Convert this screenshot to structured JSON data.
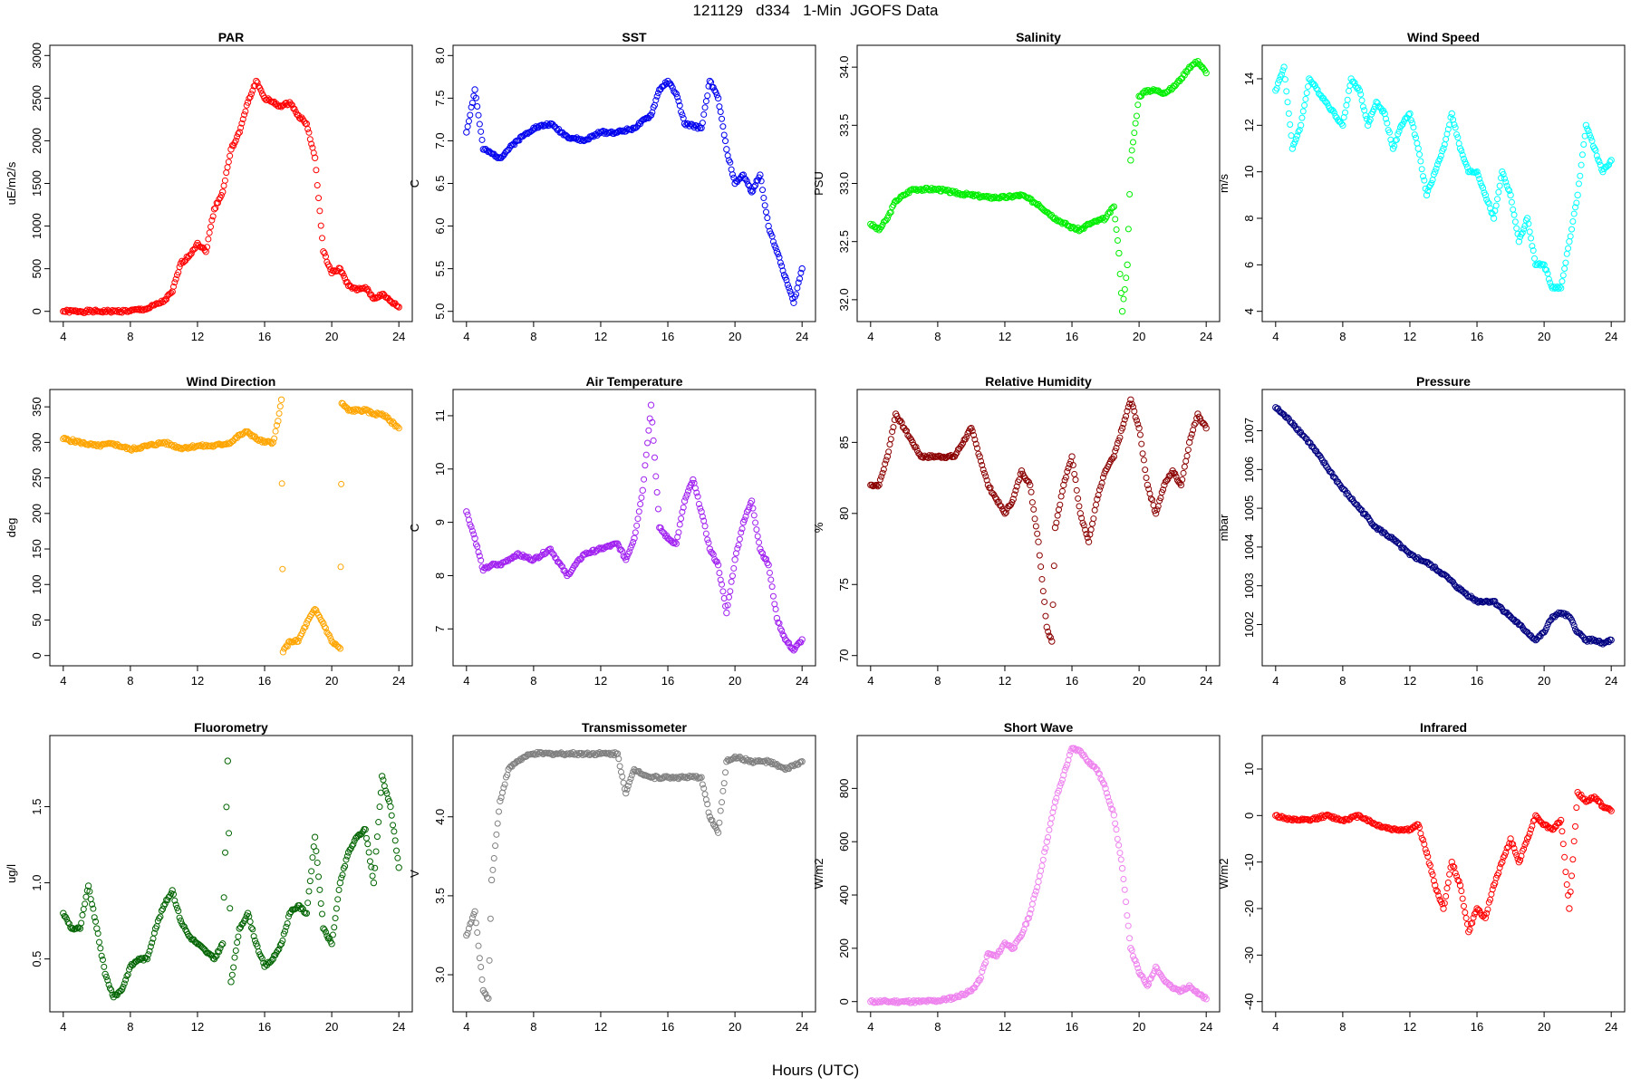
{
  "figure": {
    "suptitle": "121129   d334   1-Min  JGOFS Data",
    "xlabel": "Hours (UTC)"
  },
  "chart_data": [
    {
      "type": "scatter",
      "title": "PAR",
      "ylabel": "uE/m2/s",
      "color": "#ff0000",
      "xlim": [
        4,
        24
      ],
      "ylim": [
        0,
        3000
      ],
      "xticks": [
        4,
        8,
        12,
        16,
        20,
        24
      ],
      "yticks": [
        0,
        500,
        1000,
        1500,
        2000,
        2500,
        3000
      ],
      "x": [
        4,
        5,
        6,
        7,
        8,
        9,
        10,
        10.5,
        11,
        11.5,
        12,
        12.5,
        13,
        13.5,
        14,
        14.5,
        15,
        15.5,
        16,
        16.5,
        17,
        17.5,
        18,
        18.5,
        19,
        19.5,
        20,
        20.5,
        21,
        21.5,
        22,
        22.5,
        23,
        23.5,
        24
      ],
      "y": [
        0,
        0,
        0,
        0,
        5,
        30,
        120,
        230,
        560,
        650,
        800,
        700,
        1200,
        1400,
        1900,
        2100,
        2450,
        2700,
        2500,
        2450,
        2400,
        2450,
        2300,
        2200,
        1800,
        700,
        450,
        500,
        300,
        250,
        280,
        150,
        200,
        120,
        50
      ]
    },
    {
      "type": "scatter",
      "title": "SST",
      "ylabel": "C",
      "color": "#0000ee",
      "xlim": [
        4,
        24
      ],
      "ylim": [
        5,
        8
      ],
      "xticks": [
        4,
        8,
        12,
        16,
        20,
        24
      ],
      "yticks": [
        5.0,
        5.5,
        6.0,
        6.5,
        7.0,
        7.5,
        8.0
      ],
      "x": [
        4,
        4.5,
        5,
        5.5,
        6,
        7,
        8,
        9,
        10,
        11,
        12,
        13,
        14,
        15,
        15.5,
        16,
        16.5,
        17,
        18,
        18.5,
        19,
        19.5,
        20,
        20.5,
        21,
        21.5,
        22,
        22.5,
        23,
        23.5,
        24
      ],
      "y": [
        7.1,
        7.6,
        6.9,
        6.85,
        6.8,
        7.0,
        7.15,
        7.2,
        7.05,
        7.0,
        7.1,
        7.1,
        7.15,
        7.3,
        7.6,
        7.7,
        7.55,
        7.2,
        7.15,
        7.7,
        7.5,
        6.9,
        6.5,
        6.6,
        6.4,
        6.6,
        6.0,
        5.7,
        5.4,
        5.1,
        5.5
      ]
    },
    {
      "type": "scatter",
      "title": "Salinity",
      "ylabel": "PSU",
      "color": "#00ee00",
      "xlim": [
        4,
        24
      ],
      "ylim": [
        31.9,
        34.1
      ],
      "xticks": [
        4,
        8,
        12,
        16,
        20,
        24
      ],
      "yticks": [
        32.0,
        32.5,
        33.0,
        33.5,
        34.0
      ],
      "x": [
        4,
        4.5,
        5,
        5.5,
        6,
        6.5,
        7,
        8,
        9,
        10,
        11,
        12,
        13,
        14,
        15,
        16,
        16.5,
        17,
        18,
        18.5,
        18.8,
        19,
        19.3,
        19.5,
        20,
        20.5,
        21,
        21.5,
        22,
        22.5,
        23,
        23.5,
        24
      ],
      "y": [
        32.65,
        32.6,
        32.7,
        32.85,
        32.9,
        32.95,
        32.95,
        32.95,
        32.92,
        32.9,
        32.88,
        32.88,
        32.9,
        32.82,
        32.7,
        32.62,
        32.6,
        32.65,
        32.7,
        32.8,
        32.4,
        31.9,
        32.3,
        33.2,
        33.75,
        33.8,
        33.8,
        33.78,
        33.82,
        33.9,
        34.0,
        34.05,
        33.95
      ]
    },
    {
      "type": "scatter",
      "title": "Wind Speed",
      "ylabel": "m/s",
      "color": "#00ffff",
      "xlim": [
        4,
        24
      ],
      "ylim": [
        4,
        15
      ],
      "xticks": [
        4,
        8,
        12,
        16,
        20,
        24
      ],
      "yticks": [
        4,
        6,
        8,
        10,
        12,
        14
      ],
      "x": [
        4,
        4.5,
        5,
        5.5,
        6,
        7,
        8,
        8.5,
        9,
        9.5,
        10,
        10.5,
        11,
        11.5,
        12,
        12.5,
        13,
        13.5,
        14,
        14.5,
        15,
        15.5,
        16,
        16.5,
        17,
        17.5,
        18,
        18.5,
        19,
        19.5,
        20,
        20.5,
        21,
        21.5,
        22,
        22.5,
        23,
        23.5,
        24
      ],
      "y": [
        13.5,
        14.5,
        11,
        12,
        14,
        13,
        12,
        14,
        13.5,
        12,
        13,
        12.5,
        11,
        12,
        12.5,
        11,
        9,
        10,
        11,
        12.5,
        11,
        10,
        10,
        9,
        8,
        10,
        9,
        7,
        8,
        6,
        6,
        5,
        5,
        7,
        9,
        12,
        11,
        10,
        10.5
      ]
    },
    {
      "type": "scatter",
      "title": "Wind Direction",
      "ylabel": "deg",
      "color": "#ffa500",
      "xlim": [
        4,
        24
      ],
      "ylim": [
        0,
        360
      ],
      "xticks": [
        4,
        8,
        12,
        16,
        20,
        24
      ],
      "yticks": [
        0,
        50,
        100,
        150,
        200,
        250,
        300,
        350
      ],
      "x": [
        4,
        5,
        6,
        7,
        8,
        9,
        10,
        11,
        12,
        13,
        14,
        14.5,
        15,
        15.5,
        16,
        16.5,
        16.8,
        17,
        17.1,
        17.5,
        18,
        18.5,
        19,
        19.5,
        20,
        20.5,
        20.6,
        21,
        21.5,
        22,
        22.5,
        23,
        23.5,
        24
      ],
      "y": [
        305,
        300,
        295,
        298,
        290,
        295,
        300,
        292,
        295,
        295,
        300,
        310,
        315,
        305,
        300,
        300,
        330,
        360,
        5,
        20,
        20,
        45,
        65,
        45,
        20,
        10,
        355,
        345,
        345,
        345,
        340,
        340,
        330,
        320
      ]
    },
    {
      "type": "scatter",
      "title": "Air Temperature",
      "ylabel": "C",
      "color": "#a020f0",
      "xlim": [
        4,
        24
      ],
      "ylim": [
        6.5,
        11.3
      ],
      "xticks": [
        4,
        8,
        12,
        16,
        20,
        24
      ],
      "yticks": [
        7,
        8,
        9,
        10,
        11
      ],
      "x": [
        4,
        4.5,
        5,
        5.5,
        6,
        7,
        8,
        9,
        10,
        11,
        12,
        13,
        13.5,
        14,
        14.5,
        15,
        15.5,
        16,
        16.5,
        17,
        17.5,
        18,
        18.5,
        19,
        19.5,
        20,
        20.5,
        21,
        21.5,
        22,
        22.5,
        23,
        23.5,
        24
      ],
      "y": [
        9.2,
        8.7,
        8.1,
        8.2,
        8.2,
        8.4,
        8.3,
        8.5,
        8.0,
        8.4,
        8.5,
        8.6,
        8.3,
        8.7,
        9.6,
        11.2,
        8.9,
        8.7,
        8.6,
        9.4,
        9.8,
        9.2,
        8.5,
        8.2,
        7.3,
        8.3,
        9.0,
        9.4,
        8.5,
        8.2,
        7.2,
        6.8,
        6.6,
        6.8
      ]
    },
    {
      "type": "scatter",
      "title": "Relative Humidity",
      "ylabel": "%",
      "color": "#8b0000",
      "xlim": [
        4,
        24
      ],
      "ylim": [
        70,
        88
      ],
      "xticks": [
        4,
        8,
        12,
        16,
        20,
        24
      ],
      "yticks": [
        70,
        75,
        80,
        85
      ],
      "x": [
        4,
        4.5,
        5,
        5.5,
        6,
        6.5,
        7,
        8,
        9,
        10,
        10.5,
        11,
        11.5,
        12,
        12.5,
        13,
        13.5,
        14,
        14.5,
        14.8,
        15,
        15.5,
        16,
        16.5,
        17,
        17.5,
        18,
        18.5,
        19,
        19.5,
        20,
        20.5,
        21,
        21.5,
        22,
        22.5,
        23,
        23.5,
        24
      ],
      "y": [
        82,
        82,
        84,
        87,
        86,
        85,
        84,
        84,
        84,
        86,
        84,
        82,
        81,
        80,
        81,
        83,
        82,
        78,
        72,
        71,
        79,
        82,
        84,
        80,
        78,
        81,
        83,
        84,
        86,
        88,
        86,
        82,
        80,
        82,
        83,
        82,
        85,
        87,
        86
      ]
    },
    {
      "type": "scatter",
      "title": "Pressure",
      "ylabel": "mbar",
      "color": "#000080",
      "xlim": [
        4,
        24
      ],
      "ylim": [
        1001.2,
        1007.8
      ],
      "xticks": [
        4,
        8,
        12,
        16,
        20,
        24
      ],
      "yticks": [
        1002,
        1003,
        1004,
        1005,
        1006,
        1007
      ],
      "x": [
        4,
        5,
        6,
        7,
        8,
        9,
        10,
        11,
        12,
        13,
        14,
        15,
        16,
        17,
        18,
        18.5,
        19,
        19.5,
        20,
        20.5,
        21,
        21.5,
        22,
        22.5,
        23,
        23.5,
        24
      ],
      "y": [
        1007.6,
        1007.2,
        1006.7,
        1006.1,
        1005.5,
        1005.0,
        1004.5,
        1004.2,
        1003.8,
        1003.6,
        1003.3,
        1002.9,
        1002.6,
        1002.6,
        1002.2,
        1002.0,
        1001.8,
        1001.6,
        1001.8,
        1002.2,
        1002.3,
        1002.2,
        1001.8,
        1001.6,
        1001.6,
        1001.5,
        1001.6
      ]
    },
    {
      "type": "scatter",
      "title": "Fluorometry",
      "ylabel": "ug/l",
      "color": "#006400",
      "xlim": [
        4,
        24
      ],
      "ylim": [
        0.22,
        1.9
      ],
      "xticks": [
        4,
        8,
        12,
        16,
        20,
        24
      ],
      "yticks": [
        0.5,
        1.0,
        1.5
      ],
      "x": [
        4,
        4.5,
        5,
        5.5,
        6,
        6.5,
        7,
        7.5,
        8,
        8.5,
        9,
        9.5,
        10,
        10.5,
        11,
        11.5,
        12,
        12.5,
        13,
        13.5,
        13.8,
        14,
        14.5,
        15,
        15.5,
        16,
        16.5,
        17,
        17.5,
        18,
        18.5,
        19,
        19.5,
        20,
        20.5,
        21,
        21.5,
        22,
        22.5,
        23,
        23.5,
        24
      ],
      "y": [
        0.8,
        0.7,
        0.7,
        0.98,
        0.7,
        0.4,
        0.25,
        0.3,
        0.45,
        0.5,
        0.5,
        0.7,
        0.85,
        0.95,
        0.75,
        0.65,
        0.6,
        0.55,
        0.5,
        0.6,
        1.8,
        0.35,
        0.7,
        0.8,
        0.6,
        0.45,
        0.5,
        0.6,
        0.8,
        0.85,
        0.8,
        1.3,
        0.7,
        0.6,
        1.0,
        1.2,
        1.3,
        1.35,
        1.0,
        1.7,
        1.5,
        1.1
      ]
    },
    {
      "type": "scatter",
      "title": "Transmissometer",
      "ylabel": "V",
      "color": "#808080",
      "xlim": [
        4,
        24
      ],
      "ylim": [
        2.83,
        4.45
      ],
      "xticks": [
        4,
        8,
        12,
        16,
        20,
        24
      ],
      "yticks": [
        3.0,
        3.5,
        4.0
      ],
      "x": [
        4,
        4.5,
        5,
        5.3,
        5.5,
        6,
        6.5,
        7,
        7.5,
        8,
        9,
        10,
        11,
        12,
        13,
        13.5,
        14,
        15,
        16,
        17,
        18,
        18.5,
        19,
        19.5,
        20,
        21,
        22,
        23,
        24
      ],
      "y": [
        3.25,
        3.4,
        2.9,
        2.85,
        3.6,
        4.1,
        4.3,
        4.35,
        4.38,
        4.4,
        4.4,
        4.4,
        4.4,
        4.4,
        4.4,
        4.15,
        4.3,
        4.25,
        4.25,
        4.25,
        4.25,
        4.0,
        3.9,
        4.35,
        4.38,
        4.35,
        4.35,
        4.3,
        4.35
      ]
    },
    {
      "type": "scatter",
      "title": "Short Wave",
      "ylabel": "W/m2",
      "color": "#ee82ee",
      "xlim": [
        4,
        24
      ],
      "ylim": [
        0,
        960
      ],
      "xticks": [
        4,
        8,
        12,
        16,
        20,
        24
      ],
      "yticks": [
        0,
        200,
        400,
        600,
        800
      ],
      "x": [
        4,
        5,
        6,
        7,
        8,
        9,
        10,
        10.5,
        11,
        11.5,
        12,
        12.5,
        13,
        13.5,
        14,
        14.5,
        15,
        15.5,
        16,
        16.5,
        17,
        17.5,
        18,
        18.5,
        19,
        19.5,
        20,
        20.5,
        21,
        21.5,
        22,
        22.5,
        23,
        23.5,
        24
      ],
      "y": [
        0,
        0,
        0,
        0,
        3,
        15,
        40,
        80,
        180,
        170,
        220,
        200,
        250,
        330,
        450,
        600,
        750,
        850,
        950,
        940,
        900,
        870,
        800,
        700,
        500,
        200,
        110,
        60,
        130,
        80,
        50,
        40,
        60,
        30,
        10
      ]
    },
    {
      "type": "scatter",
      "title": "Infrared",
      "ylabel": "W/m2",
      "color": "#ff0000",
      "xlim": [
        4,
        24
      ],
      "ylim": [
        -40,
        15
      ],
      "xticks": [
        4,
        8,
        12,
        16,
        20,
        24
      ],
      "yticks": [
        -40,
        -30,
        -20,
        -10,
        0,
        10
      ],
      "x": [
        4,
        5,
        6,
        7,
        8,
        9,
        10,
        11,
        12,
        12.5,
        13,
        13.5,
        14,
        14.5,
        15,
        15.5,
        16,
        16.5,
        17,
        17.5,
        18,
        18.5,
        19,
        19.5,
        20,
        20.5,
        21,
        21.5,
        22,
        22.5,
        23,
        23.5,
        24
      ],
      "y": [
        0,
        -1,
        -1,
        0,
        -1,
        0,
        -2,
        -3,
        -3,
        -2,
        -8,
        -15,
        -20,
        -10,
        -15,
        -25,
        -20,
        -22,
        -15,
        -10,
        -5,
        -10,
        -5,
        0,
        -2,
        -3,
        -1,
        -20,
        5,
        3,
        4,
        2,
        1
      ]
    }
  ]
}
